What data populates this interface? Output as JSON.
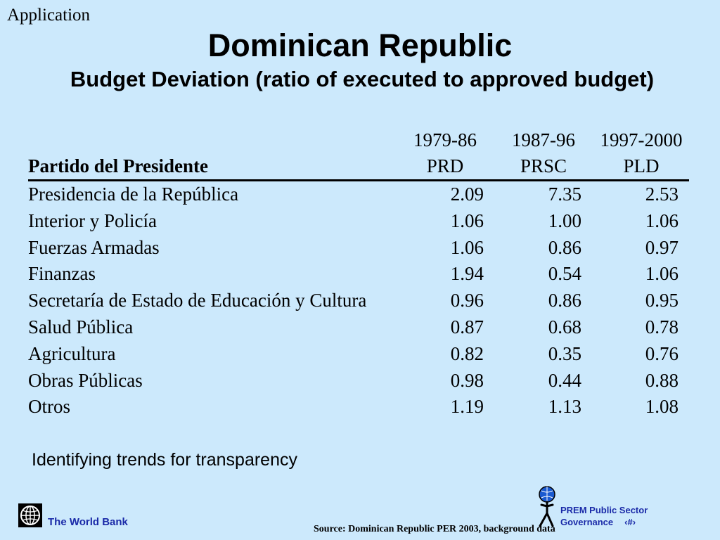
{
  "section_tag": "Application",
  "title": "Dominican Republic",
  "subtitle": "Budget Deviation (ratio of executed to approved budget)",
  "table": {
    "row_header": "Partido del Presidente",
    "periods": [
      "1979-86",
      "1987-96",
      "1997-2000"
    ],
    "parties": [
      "PRD",
      "PRSC",
      "PLD"
    ],
    "rows": [
      {
        "label": "Presidencia de la República",
        "values": [
          "2.09",
          "7.35",
          "2.53"
        ]
      },
      {
        "label": "Interior y Policía",
        "values": [
          "1.06",
          "1.00",
          "1.06"
        ]
      },
      {
        "label": "Fuerzas Armadas",
        "values": [
          "1.06",
          "0.86",
          "0.97"
        ]
      },
      {
        "label": "Finanzas",
        "values": [
          "1.94",
          "0.54",
          "1.06"
        ]
      },
      {
        "label": "Secretaría de Estado de Educación y Cultura",
        "values": [
          "0.96",
          "0.86",
          "0.95"
        ]
      },
      {
        "label": "Salud Pública",
        "values": [
          "0.87",
          "0.68",
          "0.78"
        ]
      },
      {
        "label": "Agricultura",
        "values": [
          "0.82",
          "0.35",
          "0.76"
        ]
      },
      {
        "label": "Obras Públicas",
        "values": [
          "0.98",
          "0.44",
          "0.88"
        ]
      },
      {
        "label": "Otros",
        "values": [
          "1.19",
          "1.13",
          "1.08"
        ]
      }
    ]
  },
  "caption": "Identifying trends for transparency",
  "footer": {
    "org_name": "The World Bank",
    "source": "Source: Dominican Republic PER 2003, background data",
    "prem_line1": "PREM Public Sector",
    "prem_line2": "Governance",
    "slide_number": "‹#›"
  },
  "colors": {
    "background": "#cce9fc",
    "footer_blue": "#1a2aa8"
  },
  "icons": [
    "globe-icon",
    "prem-figure-icon"
  ]
}
